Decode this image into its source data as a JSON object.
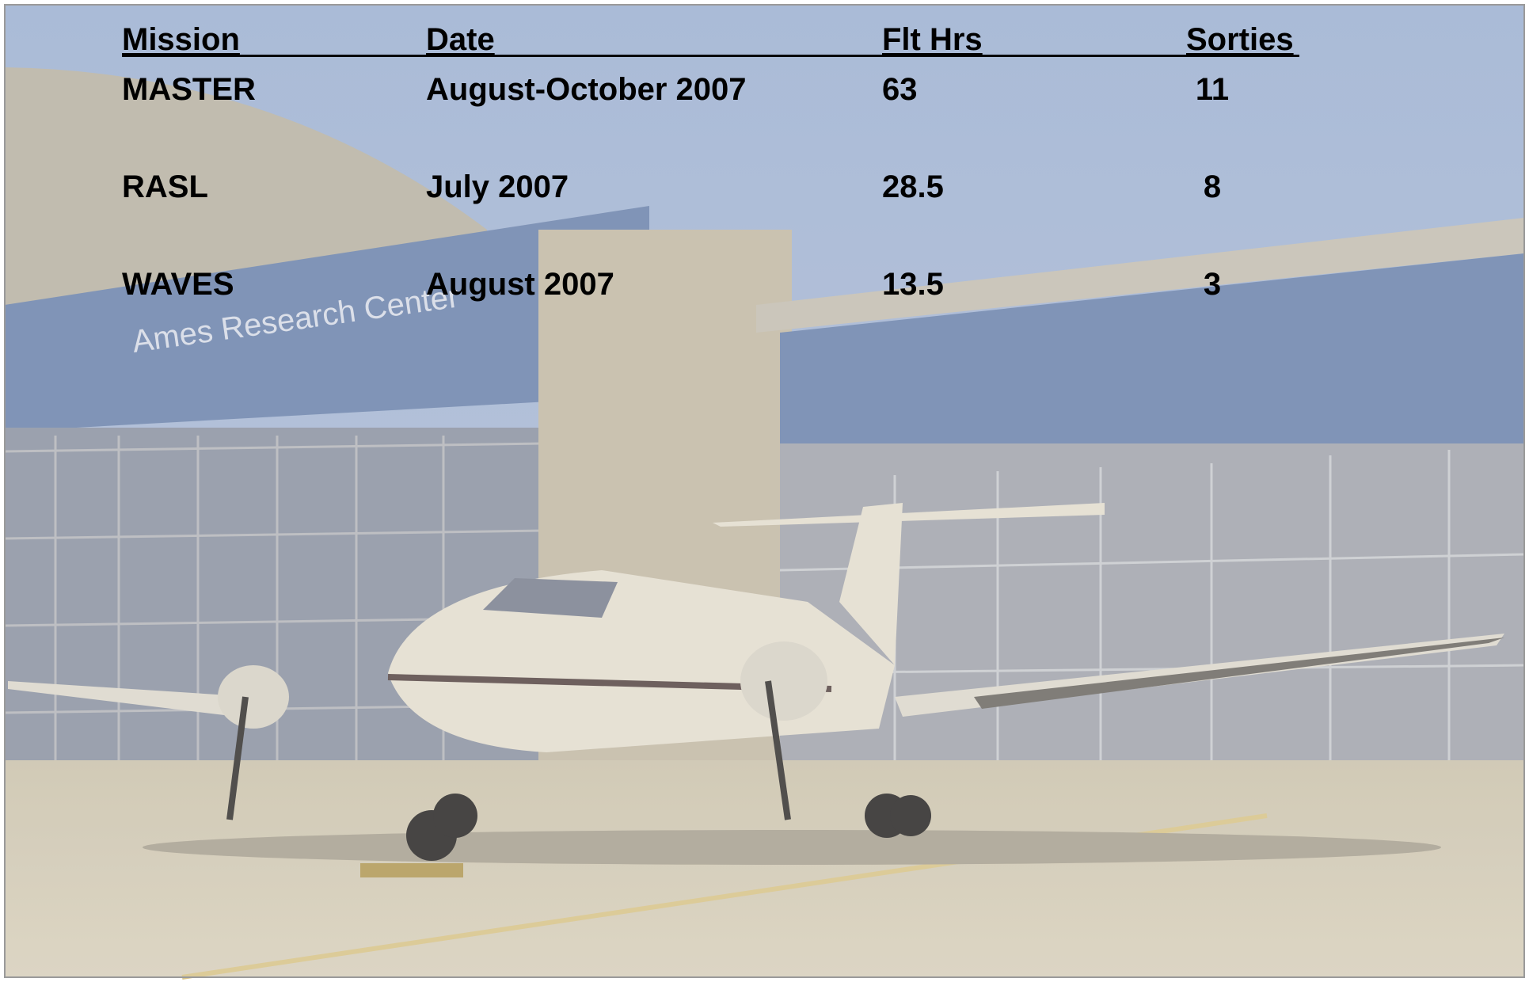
{
  "table": {
    "header": [
      "Mission",
      "Date",
      "Flt Hrs",
      "Sorties"
    ],
    "rows": [
      [
        "MASTER",
        "August-October 2007",
        "63",
        "11"
      ],
      [
        "RASL",
        "July 2007",
        "28.5",
        "8"
      ],
      [
        "WAVES",
        "August 2007",
        "13.5",
        "3"
      ]
    ]
  },
  "background": {
    "sign": "Ames Research Center"
  }
}
